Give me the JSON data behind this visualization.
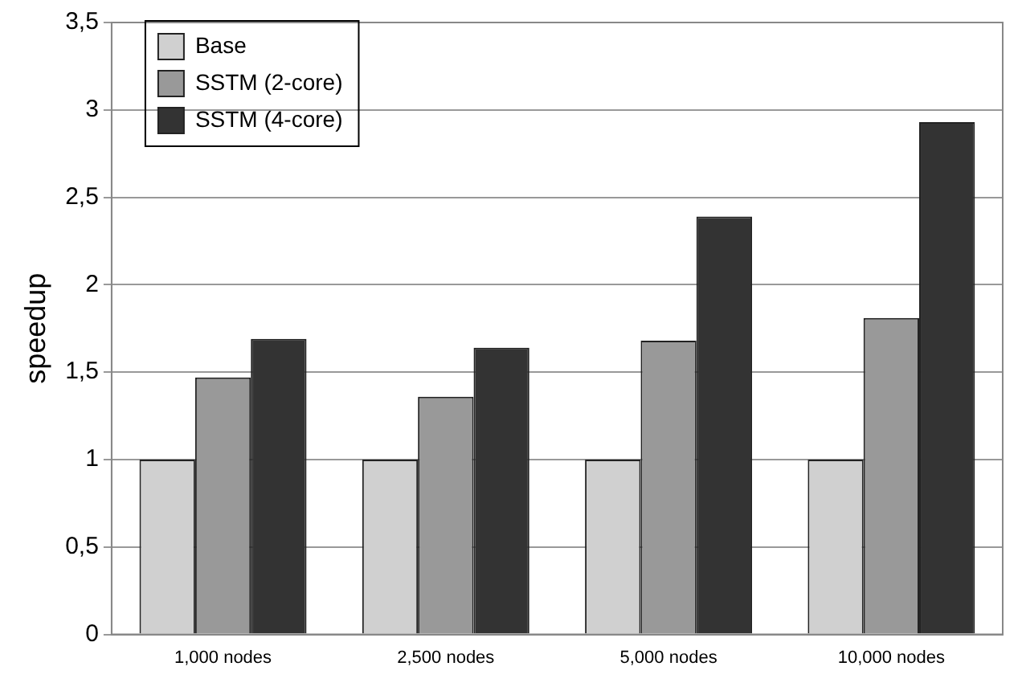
{
  "chart_data": {
    "type": "bar",
    "ylabel": "speedup",
    "categories": [
      "1,000 nodes",
      "2,500 nodes",
      "5,000 nodes",
      "10,000 nodes"
    ],
    "series": [
      {
        "name": "Base",
        "color": "#d0d0d0",
        "values": [
          1,
          1,
          1,
          1
        ]
      },
      {
        "name": "SSTM (2-core)",
        "color": "#999999",
        "values": [
          1.47,
          1.36,
          1.68,
          1.81
        ]
      },
      {
        "name": "SSTM (4-core)",
        "color": "#333333",
        "values": [
          1.69,
          1.64,
          2.39,
          2.93
        ]
      }
    ],
    "ylim": [
      0,
      3.5
    ],
    "yticks": [
      0,
      {
        "value": 0.5,
        "label": "0,5"
      },
      1,
      {
        "value": 1.5,
        "label": "1,5"
      },
      2,
      {
        "value": 2.5,
        "label": "2,5"
      },
      3,
      {
        "value": 3.5,
        "label": "3,5"
      }
    ],
    "grid": "y",
    "legend": "top left"
  }
}
